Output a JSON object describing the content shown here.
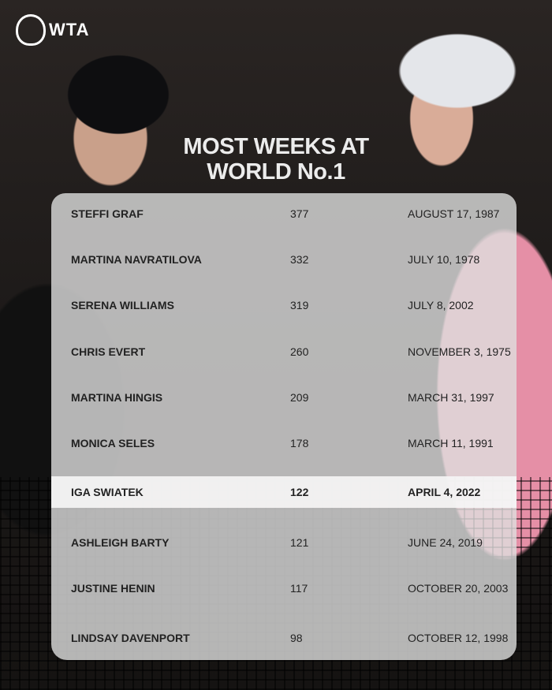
{
  "brand": {
    "logo": "WTA"
  },
  "title": {
    "line1": "MOST WEEKS AT",
    "line2": "WORLD No.1"
  },
  "rows": [
    {
      "name": "STEFFI GRAF",
      "weeks": "377",
      "date": "AUGUST 17, 1987"
    },
    {
      "name": "MARTINA NAVRATILOVA",
      "weeks": "332",
      "date": "JULY 10, 1978"
    },
    {
      "name": "SERENA WILLIAMS",
      "weeks": "319",
      "date": "JULY 8, 2002"
    },
    {
      "name": "CHRIS EVERT",
      "weeks": "260",
      "date": "NOVEMBER 3, 1975"
    },
    {
      "name": "MARTINA HINGIS",
      "weeks": "209",
      "date": "MARCH 31, 1997"
    },
    {
      "name": "MONICA SELES",
      "weeks": "178",
      "date": "MARCH 11, 1991"
    },
    {
      "name": "IGA SWIATEK",
      "weeks": "122",
      "date": "APRIL 4, 2022",
      "highlighted": true
    },
    {
      "name": "ASHLEIGH BARTY",
      "weeks": "121",
      "date": "JUNE 24, 2019"
    },
    {
      "name": "JUSTINE HENIN",
      "weeks": "117",
      "date": "OCTOBER 20, 2003"
    },
    {
      "name": "LINDSAY DAVENPORT",
      "weeks": "98",
      "date": "OCTOBER 12, 1998"
    }
  ]
}
